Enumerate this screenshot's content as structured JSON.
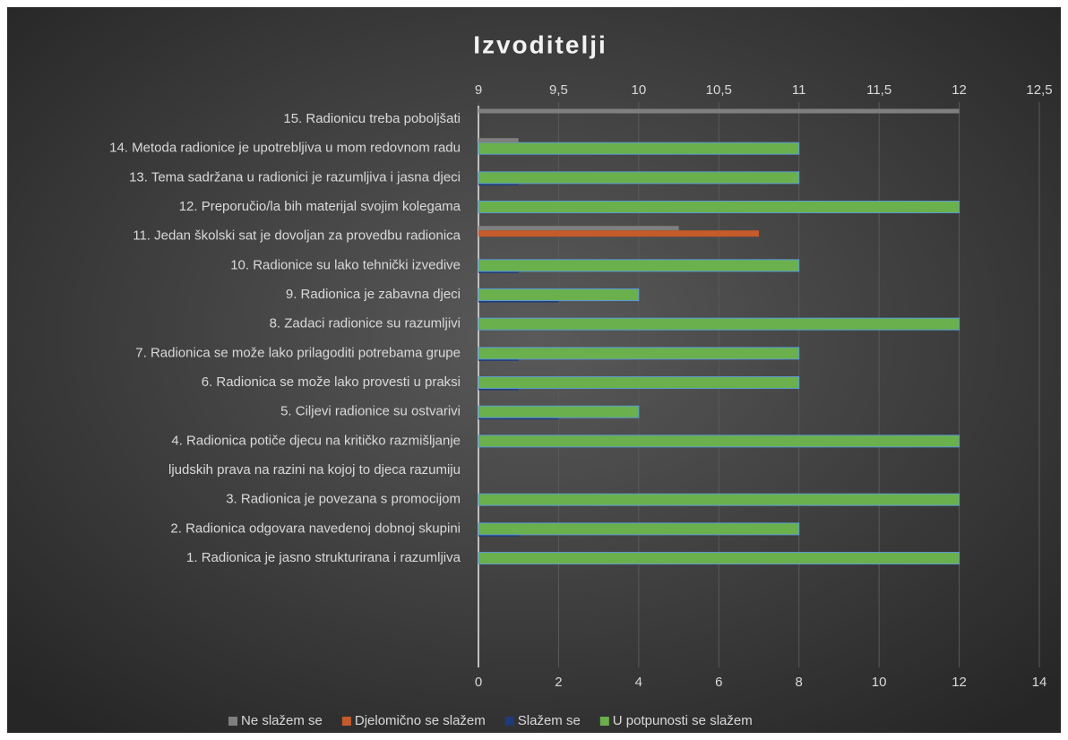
{
  "chart_data": {
    "type": "hbar",
    "title": "Izvoditelji",
    "categories": [
      "1. Radionica je jasno strukturirana i razumljiva",
      "2. Radionica odgovara navedenoj dobnoj skupini",
      "3. Radionica je povezana s promocijom ",
      "ljudskih prava na razini na kojoj to djeca razumiju",
      "4. Radionica potiče djecu na kritičko razmišljanje",
      "5. Ciljevi radionice su ostvarivi",
      "6. Radionica se može lako provesti u praksi",
      "7. Radionica se može lako prilagoditi potrebama grupe",
      "8. Zadaci radionice su razumljivi",
      "9. Radionica je zabavna djeci",
      "10. Radionice  su lako tehnički izvedive",
      "11. Jedan školski sat je dovoljan za provedbu radionica",
      "12. Preporučio/la bih materijal svojim kolegama",
      "13. Tema sadržana u radionici je razumljiva i jasna djeci",
      "14. Metoda radionice je upotrebljiva u mom redovnom radu",
      "15. Radionicu treba poboljšati"
    ],
    "series": [
      {
        "name": "Ne slažem se",
        "color": "#7f7f7f",
        "values": [
          0,
          0,
          0,
          null,
          0,
          0,
          0,
          0,
          0,
          0,
          0,
          5,
          0,
          0,
          1,
          12
        ]
      },
      {
        "name": "Djelomično se slažem",
        "color": "#c55a2a",
        "values": [
          0,
          0,
          0,
          null,
          0,
          0,
          0,
          0,
          0,
          0,
          0,
          7,
          0,
          0,
          0,
          0
        ]
      },
      {
        "name": "Slažem se",
        "color": "#1f3a7a",
        "values": [
          0,
          1,
          0,
          null,
          0,
          2,
          1,
          1,
          0,
          2,
          1,
          0,
          0,
          1,
          0,
          0
        ]
      },
      {
        "name": "U potpunosti se slažem",
        "color": "#6ab04c",
        "values": [
          12,
          8,
          12,
          null,
          12,
          4,
          8,
          8,
          12,
          4,
          8,
          0,
          12,
          8,
          8,
          0
        ]
      }
    ],
    "xlim": [
      0,
      14
    ],
    "xticks": [
      0,
      2,
      4,
      6,
      8,
      10,
      12,
      14
    ],
    "x2lim": [
      9,
      12.5
    ],
    "x2ticks": [
      9,
      {
        "value": 9.5,
        "label": "9,5"
      },
      10,
      {
        "value": 10.5,
        "label": "10,5"
      },
      11,
      {
        "value": 11.5,
        "label": "11,5"
      },
      12,
      {
        "value": 12.5,
        "label": "12,5"
      }
    ],
    "grid": true,
    "legend": "bottom"
  }
}
